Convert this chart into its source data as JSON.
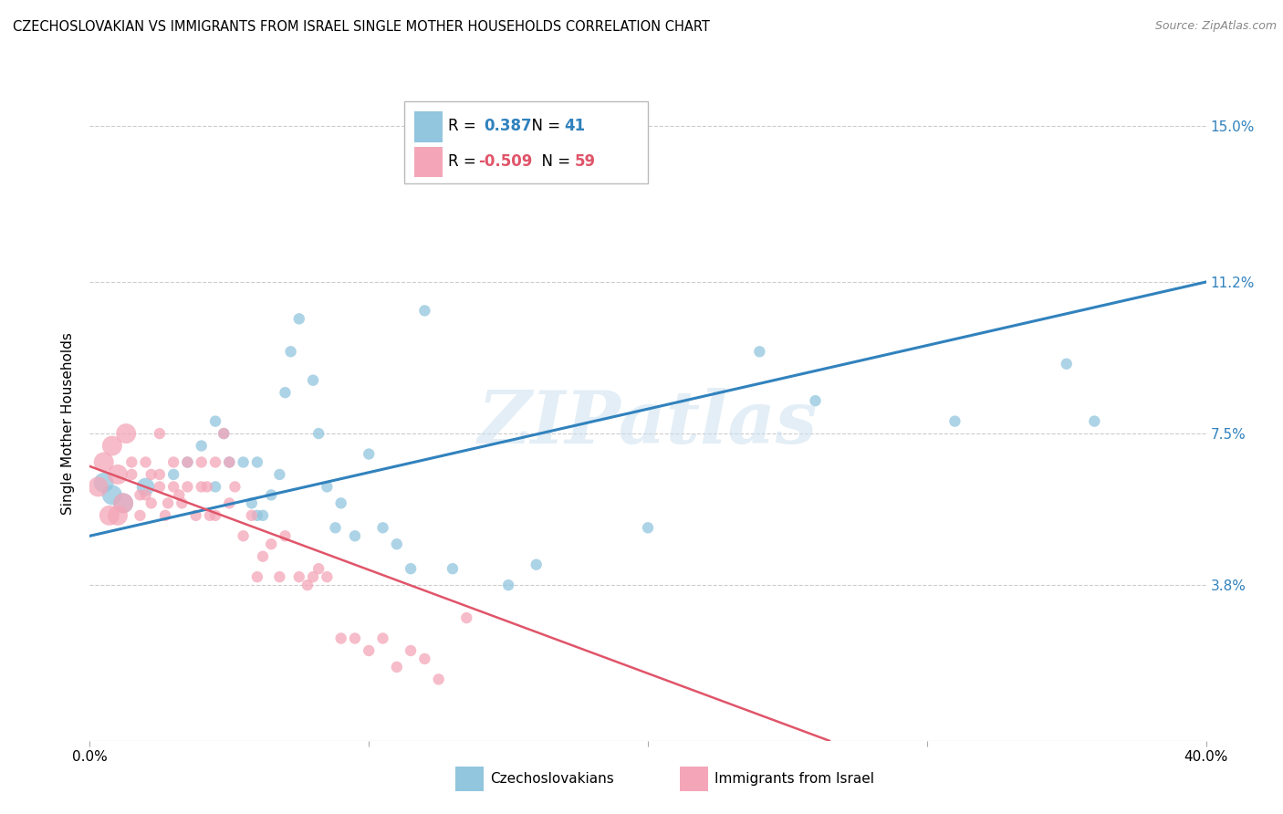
{
  "title": "CZECHOSLOVAKIAN VS IMMIGRANTS FROM ISRAEL SINGLE MOTHER HOUSEHOLDS CORRELATION CHART",
  "source": "Source: ZipAtlas.com",
  "ylabel": "Single Mother Households",
  "xlim": [
    0.0,
    0.4
  ],
  "ylim": [
    0.0,
    0.155
  ],
  "yticks": [
    0.038,
    0.075,
    0.112,
    0.15
  ],
  "ytick_labels": [
    "3.8%",
    "7.5%",
    "11.2%",
    "15.0%"
  ],
  "xticks": [
    0.0,
    0.1,
    0.2,
    0.3,
    0.4
  ],
  "xtick_labels": [
    "0.0%",
    "",
    "",
    "",
    "40.0%"
  ],
  "blue_color": "#92c5de",
  "pink_color": "#f4a6b8",
  "blue_line_color": "#3182bd",
  "pink_line_color": "#e0556a",
  "watermark": "ZIPatlas",
  "legend_blue_r": "0.387",
  "legend_blue_n": "41",
  "legend_pink_r": "-0.509",
  "legend_pink_n": "59",
  "blue_scatter_x": [
    0.005,
    0.008,
    0.012,
    0.02,
    0.03,
    0.035,
    0.04,
    0.045,
    0.045,
    0.048,
    0.05,
    0.055,
    0.058,
    0.06,
    0.06,
    0.062,
    0.065,
    0.068,
    0.07,
    0.072,
    0.075,
    0.08,
    0.082,
    0.085,
    0.088,
    0.09,
    0.095,
    0.1,
    0.105,
    0.11,
    0.115,
    0.12,
    0.13,
    0.15,
    0.16,
    0.2,
    0.24,
    0.26,
    0.31,
    0.35,
    0.36
  ],
  "blue_scatter_y": [
    0.063,
    0.06,
    0.058,
    0.062,
    0.065,
    0.068,
    0.072,
    0.078,
    0.062,
    0.075,
    0.068,
    0.068,
    0.058,
    0.068,
    0.055,
    0.055,
    0.06,
    0.065,
    0.085,
    0.095,
    0.103,
    0.088,
    0.075,
    0.062,
    0.052,
    0.058,
    0.05,
    0.07,
    0.052,
    0.048,
    0.042,
    0.105,
    0.042,
    0.038,
    0.043,
    0.052,
    0.095,
    0.083,
    0.078,
    0.092,
    0.078
  ],
  "blue_scatter_size": [
    250,
    250,
    250,
    200,
    80,
    80,
    80,
    80,
    80,
    80,
    80,
    80,
    80,
    80,
    80,
    80,
    80,
    80,
    80,
    80,
    80,
    80,
    80,
    80,
    80,
    80,
    80,
    80,
    80,
    80,
    80,
    80,
    80,
    80,
    80,
    80,
    80,
    80,
    80,
    80,
    80
  ],
  "pink_scatter_x": [
    0.003,
    0.005,
    0.007,
    0.008,
    0.01,
    0.01,
    0.012,
    0.013,
    0.015,
    0.015,
    0.018,
    0.018,
    0.02,
    0.02,
    0.022,
    0.022,
    0.025,
    0.025,
    0.025,
    0.027,
    0.028,
    0.03,
    0.03,
    0.032,
    0.033,
    0.035,
    0.035,
    0.038,
    0.04,
    0.04,
    0.042,
    0.043,
    0.045,
    0.045,
    0.048,
    0.05,
    0.05,
    0.052,
    0.055,
    0.058,
    0.06,
    0.062,
    0.065,
    0.068,
    0.07,
    0.075,
    0.078,
    0.08,
    0.082,
    0.085,
    0.09,
    0.095,
    0.1,
    0.105,
    0.11,
    0.115,
    0.12,
    0.125,
    0.135
  ],
  "pink_scatter_y": [
    0.062,
    0.068,
    0.055,
    0.072,
    0.055,
    0.065,
    0.058,
    0.075,
    0.065,
    0.068,
    0.055,
    0.06,
    0.06,
    0.068,
    0.058,
    0.065,
    0.062,
    0.065,
    0.075,
    0.055,
    0.058,
    0.062,
    0.068,
    0.06,
    0.058,
    0.062,
    0.068,
    0.055,
    0.062,
    0.068,
    0.062,
    0.055,
    0.055,
    0.068,
    0.075,
    0.058,
    0.068,
    0.062,
    0.05,
    0.055,
    0.04,
    0.045,
    0.048,
    0.04,
    0.05,
    0.04,
    0.038,
    0.04,
    0.042,
    0.04,
    0.025,
    0.025,
    0.022,
    0.025,
    0.018,
    0.022,
    0.02,
    0.015,
    0.03
  ],
  "pink_scatter_size": [
    250,
    250,
    250,
    250,
    250,
    250,
    250,
    250,
    80,
    80,
    80,
    80,
    80,
    80,
    80,
    80,
    80,
    80,
    80,
    80,
    80,
    80,
    80,
    80,
    80,
    80,
    80,
    80,
    80,
    80,
    80,
    80,
    80,
    80,
    80,
    80,
    80,
    80,
    80,
    80,
    80,
    80,
    80,
    80,
    80,
    80,
    80,
    80,
    80,
    80,
    80,
    80,
    80,
    80,
    80,
    80,
    80,
    80,
    80
  ],
  "blue_line_x": [
    0.0,
    0.4
  ],
  "blue_line_y": [
    0.05,
    0.112
  ],
  "pink_line_x": [
    0.0,
    0.265
  ],
  "pink_line_y": [
    0.067,
    0.0
  ],
  "grid_color": "#cccccc",
  "background_color": "#ffffff"
}
